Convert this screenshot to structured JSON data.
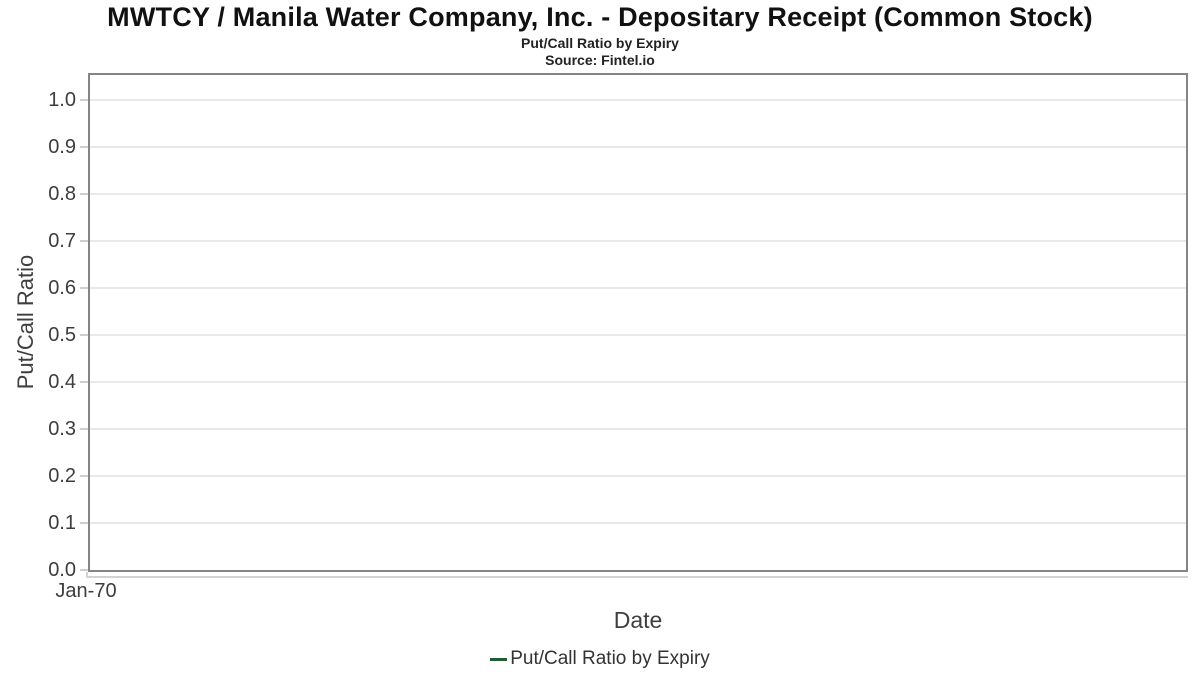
{
  "chart": {
    "title": "MWTCY / Manila Water Company, Inc. - Depositary Receipt (Common Stock)",
    "subtitle": "Put/Call Ratio by Expiry",
    "source": "Source: Fintel.io",
    "xlabel": "Date",
    "ylabel": "Put/Call Ratio",
    "x_tick_label": "Jan-70",
    "legend": {
      "label": "Put/Call Ratio by Expiry",
      "marker_color": "#215c32"
    },
    "colors": {
      "plot_border": "#858585",
      "gridline": "#e9e9e9",
      "tick": "#cfcfcf",
      "axis_line": "#d2d2d2",
      "text": "#3d3d3d",
      "title_text": "#111111",
      "series_green": "#215c32"
    }
  },
  "chart_data": {
    "type": "line",
    "title": "MWTCY / Manila Water Company, Inc. - Depositary Receipt (Common Stock)",
    "subtitle": "Put/Call Ratio by Expiry",
    "source": "Source: Fintel.io",
    "xlabel": "Date",
    "ylabel": "Put/Call Ratio",
    "x_tick_labels": [
      "Jan-70"
    ],
    "y_ticks": [
      0.0,
      0.1,
      0.2,
      0.3,
      0.4,
      0.5,
      0.6,
      0.7,
      0.8,
      0.9,
      1.0
    ],
    "ylim": [
      0,
      1.05
    ],
    "grid": "horizontal-only",
    "legend_position": "bottom-center",
    "series": [
      {
        "name": "Put/Call Ratio by Expiry",
        "color": "#215c32",
        "x": [],
        "values": []
      }
    ]
  }
}
